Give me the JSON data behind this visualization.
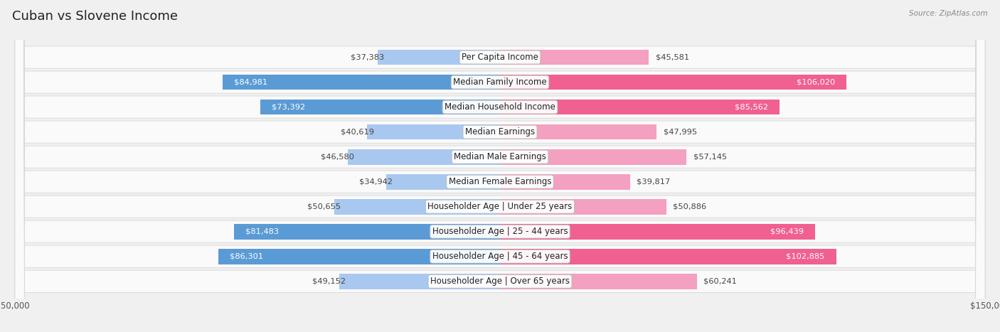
{
  "title": "Cuban vs Slovene Income",
  "source": "Source: ZipAtlas.com",
  "categories": [
    "Per Capita Income",
    "Median Family Income",
    "Median Household Income",
    "Median Earnings",
    "Median Male Earnings",
    "Median Female Earnings",
    "Householder Age | Under 25 years",
    "Householder Age | 25 - 44 years",
    "Householder Age | 45 - 64 years",
    "Householder Age | Over 65 years"
  ],
  "cuban_values": [
    37383,
    84981,
    73392,
    40619,
    46580,
    34942,
    50655,
    81483,
    86301,
    49152
  ],
  "slovene_values": [
    45581,
    106020,
    85562,
    47995,
    57145,
    39817,
    50886,
    96439,
    102885,
    60241
  ],
  "cuban_color_light": "#a8c8f0",
  "cuban_color_dark": "#5b9bd5",
  "slovene_color_light": "#f4a0c0",
  "slovene_color_dark": "#f06090",
  "bg_color": "#f0f0f0",
  "row_bg_color": "#fafafa",
  "row_border_color": "#d8d8d8",
  "max_value": 150000,
  "bar_height": 0.62,
  "title_fontsize": 13,
  "label_fontsize": 8.5,
  "value_fontsize": 8.2,
  "cuban_label_inside_threshold": 65000,
  "slovene_label_inside_threshold": 80000,
  "cuban_dark_threshold": 65000,
  "slovene_dark_threshold": 80000
}
